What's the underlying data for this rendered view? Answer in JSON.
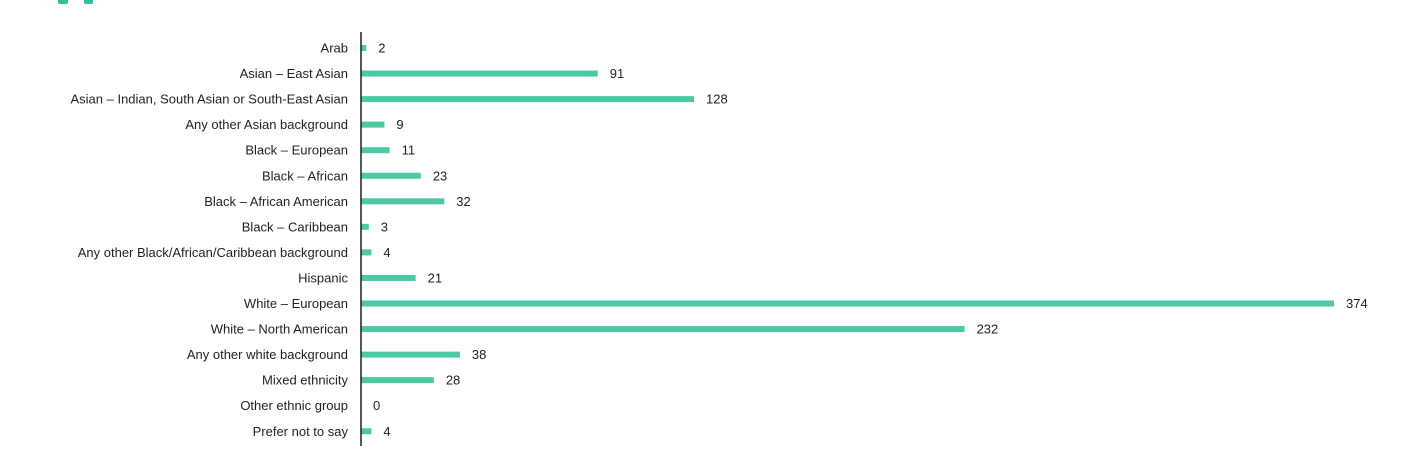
{
  "colors": {
    "bar": "#4cc9a4",
    "axis": "#1f1f1f",
    "text": "#1f1f1f",
    "title_fragment": "#2fbf9a"
  },
  "chart_data": {
    "type": "bar",
    "orientation": "horizontal",
    "categories": [
      "Arab",
      "Asian – East Asian",
      "Asian – Indian, South Asian or South-East Asian",
      "Any other Asian background",
      "Black – European",
      "Black – African",
      "Black – African American",
      "Black – Caribbean",
      "Any other Black/African/Caribbean background",
      "Hispanic",
      "White – European",
      "White – North American",
      "Any other white background",
      "Mixed ethnicity",
      "Other ethnic group",
      "Prefer not to say"
    ],
    "values": [
      2,
      91,
      128,
      9,
      11,
      23,
      32,
      3,
      4,
      21,
      374,
      232,
      38,
      28,
      0,
      4
    ],
    "value_labels": [
      "2",
      "91",
      "128",
      "9",
      "11",
      "23",
      "32",
      "3",
      "4",
      "21",
      "374",
      "232",
      "38",
      "28",
      "0",
      "4"
    ],
    "xlim": [
      0,
      374
    ],
    "grid": false,
    "legend": "none",
    "data_labels": "end-of-bar"
  }
}
